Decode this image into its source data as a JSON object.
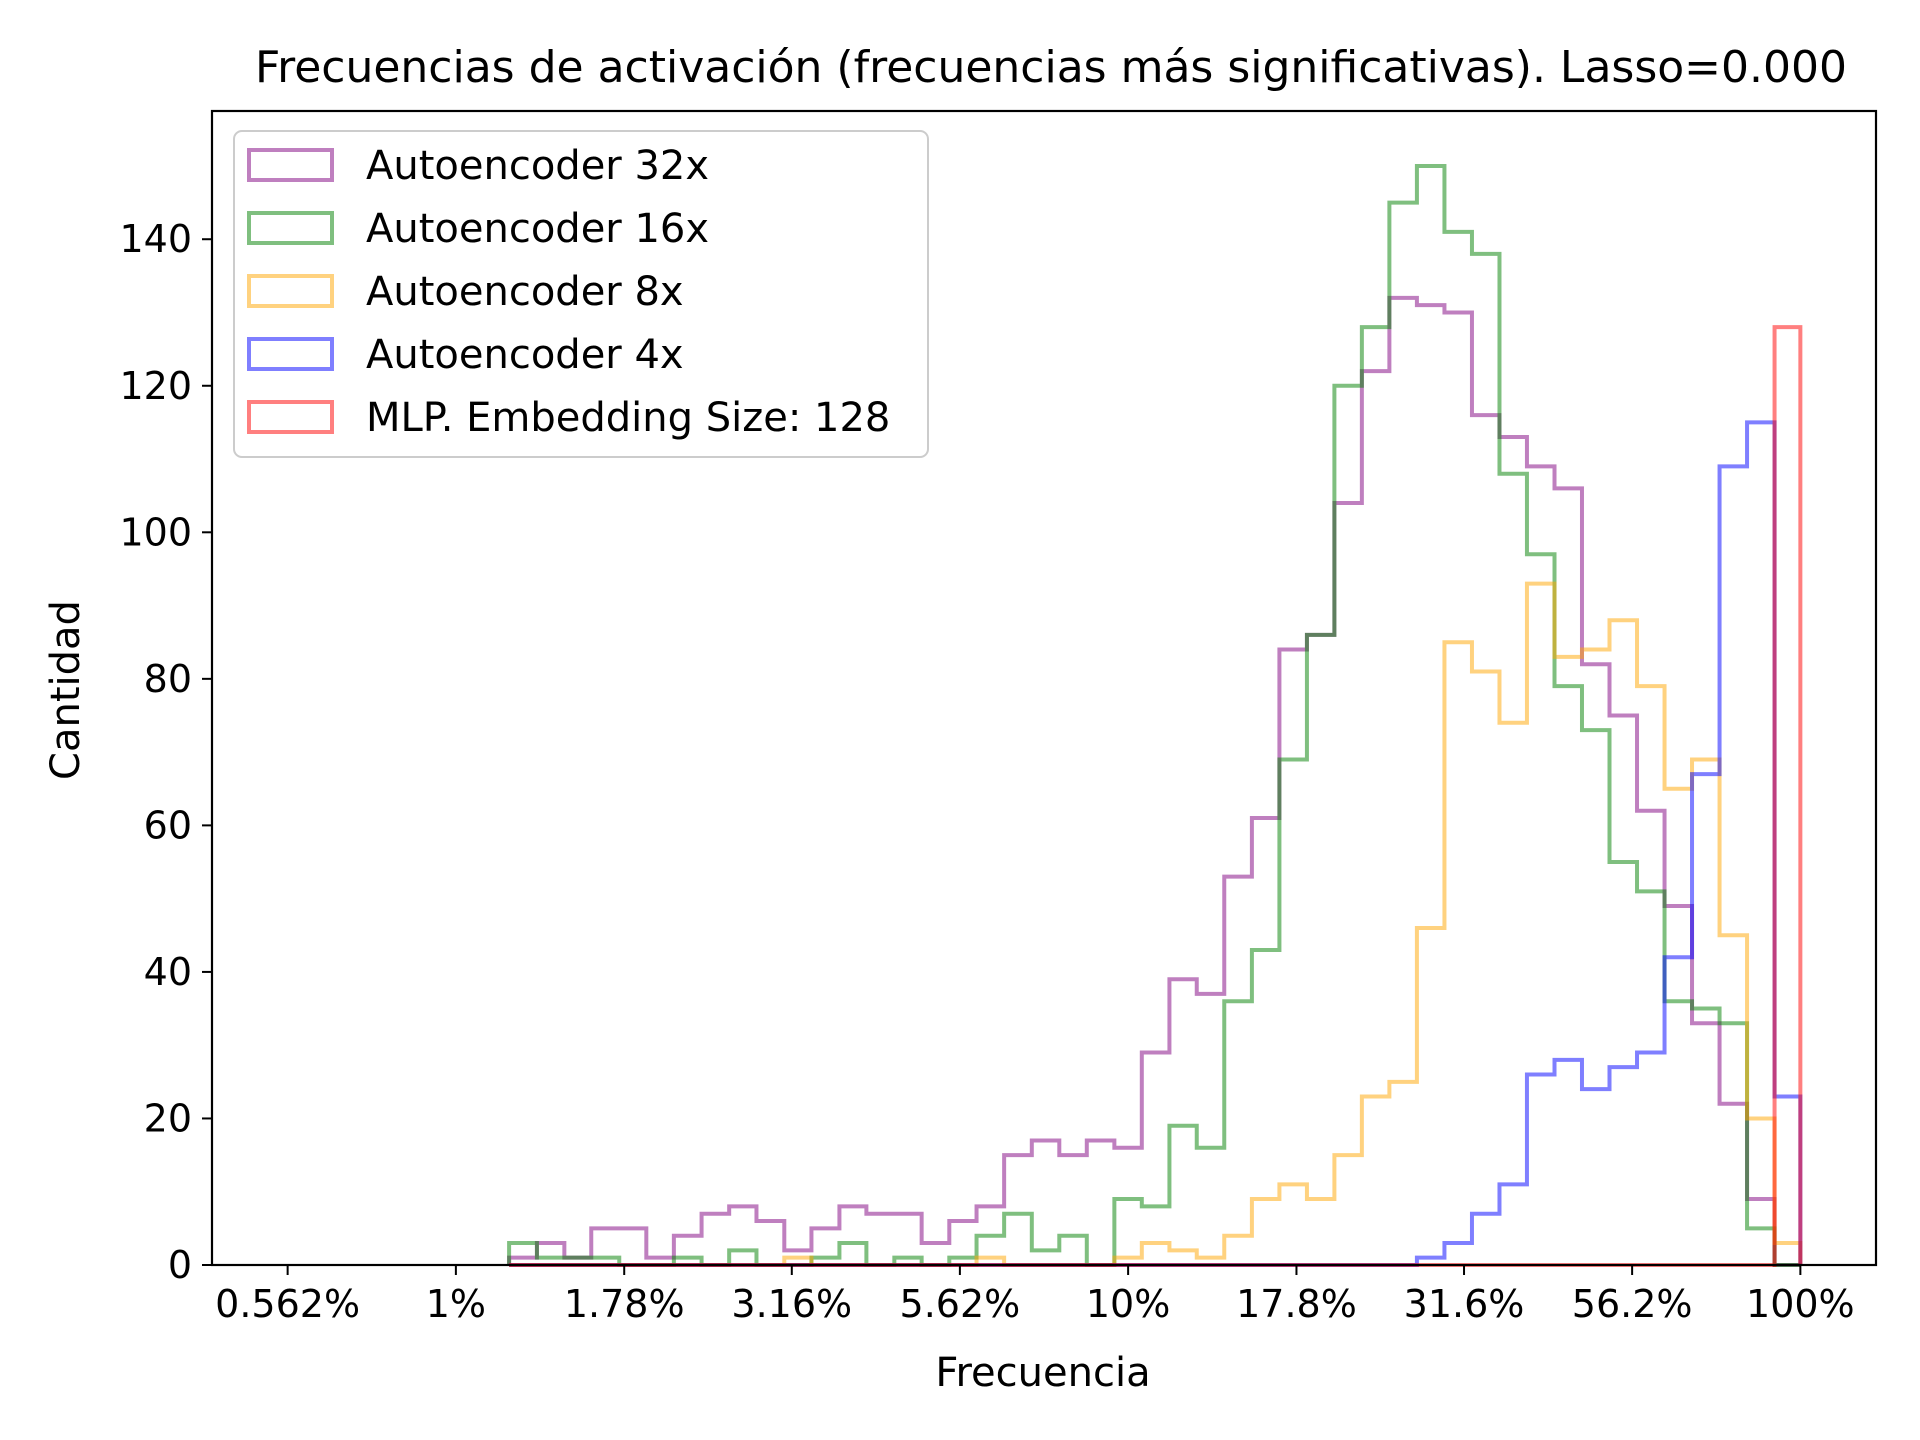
{
  "chart_data": {
    "type": "histogram",
    "title": "Frecuencias de activación (frecuencias más significativas). Lasso=0.000",
    "xlabel": "Frecuencia",
    "ylabel": "Cantidad",
    "x_scale": "log",
    "xlim": [
      0.00562,
      1.0
    ],
    "ylim": [
      0,
      150
    ],
    "x_ticks": [
      {
        "value": 0.00562,
        "label": "0.562%"
      },
      {
        "value": 0.01,
        "label": "1%"
      },
      {
        "value": 0.0178,
        "label": "1.78%"
      },
      {
        "value": 0.0316,
        "label": "3.16%"
      },
      {
        "value": 0.0562,
        "label": "5.62%"
      },
      {
        "value": 0.1,
        "label": "10%"
      },
      {
        "value": 0.178,
        "label": "17.8%"
      },
      {
        "value": 0.316,
        "label": "31.6%"
      },
      {
        "value": 0.562,
        "label": "56.2%"
      },
      {
        "value": 1.0,
        "label": "100%"
      }
    ],
    "y_ticks": [
      0,
      20,
      40,
      60,
      80,
      100,
      120,
      140
    ],
    "legend_position": "top-left",
    "grid": false,
    "bin_edges_percent": [
      1.2,
      1.32,
      1.45,
      1.59,
      1.75,
      1.92,
      2.11,
      2.32,
      2.55,
      2.8,
      3.08,
      3.38,
      3.72,
      4.08,
      4.49,
      4.93,
      5.42,
      5.95,
      6.54,
      7.19,
      7.9,
      8.68,
      9.54,
      10.48,
      11.52,
      12.65,
      13.9,
      15.28,
      16.79,
      18.45,
      20.27,
      22.27,
      24.47,
      26.89,
      29.55,
      32.47,
      35.68,
      39.2,
      43.08,
      47.33,
      52.01,
      57.15,
      62.8,
      69.0,
      75.82,
      83.31,
      91.54,
      100.0
    ],
    "series": [
      {
        "name": "Autoencoder 32x",
        "color": "#800080",
        "opacity": 0.5,
        "counts": [
          1,
          3,
          1,
          5,
          5,
          1,
          4,
          7,
          8,
          6,
          2,
          5,
          8,
          7,
          7,
          3,
          6,
          8,
          15,
          17,
          15,
          17,
          16,
          29,
          39,
          37,
          53,
          61,
          84,
          86,
          104,
          122,
          132,
          131,
          130,
          116,
          113,
          109,
          106,
          82,
          75,
          62,
          49,
          33,
          22,
          9,
          0
        ]
      },
      {
        "name": "Autoencoder 16x",
        "color": "#008000",
        "opacity": 0.5,
        "counts": [
          3,
          1,
          1,
          1,
          0,
          0,
          1,
          0,
          2,
          0,
          0,
          1,
          3,
          0,
          1,
          0,
          1,
          4,
          7,
          2,
          4,
          0,
          9,
          8,
          19,
          16,
          36,
          43,
          69,
          86,
          120,
          128,
          145,
          150,
          141,
          138,
          108,
          97,
          79,
          73,
          55,
          51,
          36,
          35,
          33,
          5,
          0
        ]
      },
      {
        "name": "Autoencoder 8x",
        "color": "#FFA500",
        "opacity": 0.5,
        "counts": [
          0,
          0,
          0,
          0,
          0,
          0,
          0,
          0,
          0,
          0,
          1,
          0,
          0,
          0,
          0,
          0,
          0,
          1,
          0,
          0,
          0,
          0,
          1,
          3,
          2,
          1,
          4,
          9,
          11,
          9,
          15,
          23,
          25,
          46,
          85,
          81,
          74,
          93,
          83,
          84,
          88,
          79,
          65,
          69,
          45,
          20,
          3
        ]
      },
      {
        "name": "Autoencoder 4x",
        "color": "#0000FF",
        "opacity": 0.5,
        "counts": [
          0,
          0,
          0,
          0,
          0,
          0,
          0,
          0,
          0,
          0,
          0,
          0,
          0,
          0,
          0,
          0,
          0,
          0,
          0,
          0,
          0,
          0,
          0,
          0,
          0,
          0,
          0,
          0,
          0,
          0,
          0,
          0,
          0,
          1,
          3,
          7,
          11,
          26,
          28,
          24,
          27,
          29,
          42,
          67,
          109,
          115,
          23
        ]
      },
      {
        "name": "MLP. Embedding Size: 128",
        "color": "#FF0000",
        "opacity": 0.5,
        "counts": [
          0,
          0,
          0,
          0,
          0,
          0,
          0,
          0,
          0,
          0,
          0,
          0,
          0,
          0,
          0,
          0,
          0,
          0,
          0,
          0,
          0,
          0,
          0,
          0,
          0,
          0,
          0,
          0,
          0,
          0,
          0,
          0,
          0,
          0,
          0,
          0,
          0,
          0,
          0,
          0,
          0,
          0,
          0,
          0,
          0,
          0,
          128
        ]
      }
    ]
  }
}
